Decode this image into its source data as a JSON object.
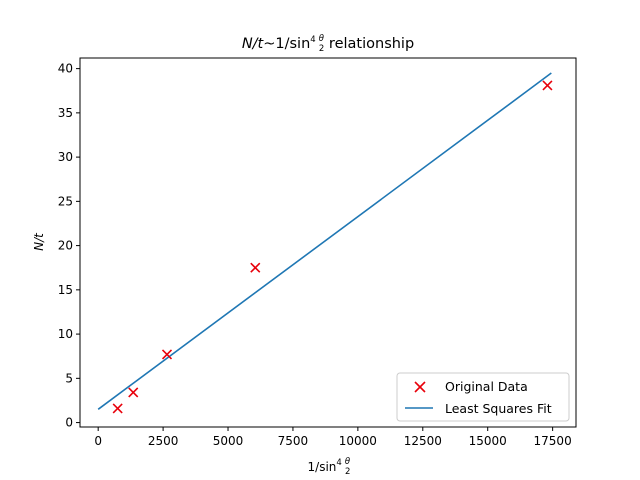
{
  "chart_data": {
    "type": "scatter",
    "title_parts": {
      "lhs": "N/t",
      "sep": "~1/sin",
      "exp": "4",
      "num": "θ",
      "den": "2",
      "tail": " relationship"
    },
    "xlabel_parts": {
      "pre": "1/sin",
      "exp": "4",
      "num": "θ",
      "den": "2"
    },
    "ylabel": "N/t",
    "xlim": [
      -700,
      18400
    ],
    "ylim": [
      -0.5,
      41.2
    ],
    "x_ticks": [
      0,
      2500,
      5000,
      7500,
      10000,
      12500,
      15000,
      17500
    ],
    "x_tick_labels": [
      "0",
      "2500",
      "5000",
      "7500",
      "10000",
      "12500",
      "15000",
      "17500"
    ],
    "y_ticks": [
      0,
      5,
      10,
      15,
      20,
      25,
      30,
      35,
      40
    ],
    "y_tick_labels": [
      "0",
      "5",
      "10",
      "15",
      "20",
      "25",
      "30",
      "35",
      "40"
    ],
    "grid": false,
    "legend_position": "lower-right",
    "series": [
      {
        "name": "Original Data",
        "kind": "scatter",
        "marker": "x",
        "color": "#e8000b",
        "points": [
          {
            "x": 750,
            "y": 1.6
          },
          {
            "x": 1350,
            "y": 3.4
          },
          {
            "x": 2650,
            "y": 7.7
          },
          {
            "x": 6050,
            "y": 17.5
          },
          {
            "x": 17300,
            "y": 38.1
          }
        ]
      },
      {
        "name": "Least Squares Fit",
        "kind": "line",
        "color": "#1f77b4",
        "points": [
          {
            "x": 0,
            "y": 1.5
          },
          {
            "x": 17450,
            "y": 39.5
          }
        ]
      }
    ]
  }
}
